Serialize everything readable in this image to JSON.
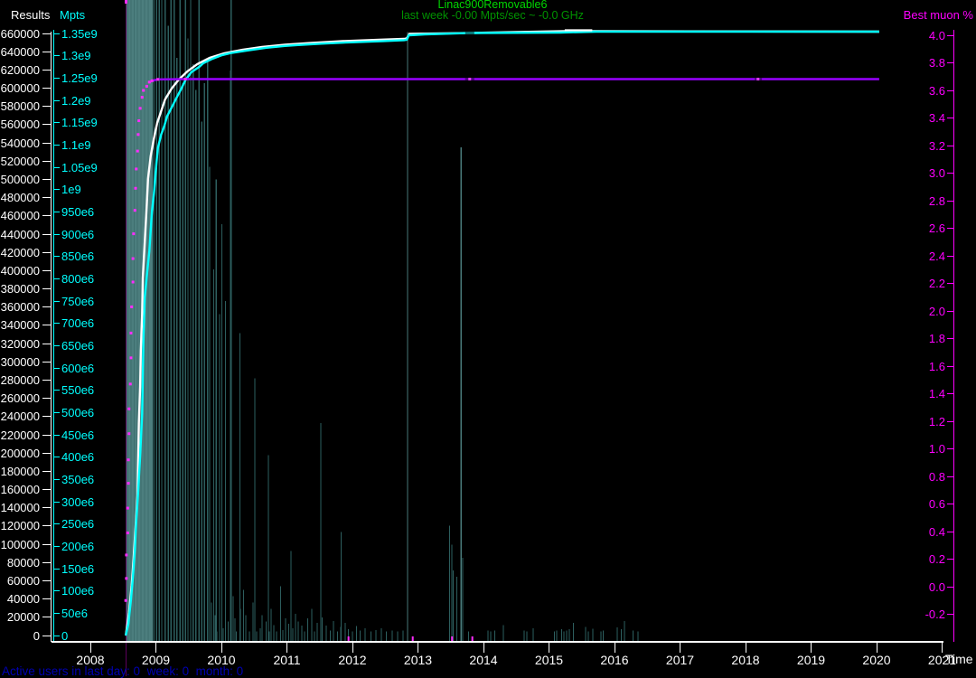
{
  "window": {
    "background": "#000000"
  },
  "header": {
    "title_color": "#00d800",
    "subtitle_color": "#009300"
  },
  "status_bar": {
    "text": "Active users in last day: 0  week: 0  month: 0",
    "color": "#0000b4"
  },
  "chart_data": {
    "type": "line",
    "title": "Linac900Removable6",
    "subtitle": "last week -0.00 Mpts/sec ~ -0.0 GHz",
    "grid": false,
    "x_axis": {
      "label": "Time",
      "color": "#ffffff",
      "range": [
        2007.42,
        2021.17
      ],
      "tick_labels": [
        "2008",
        "2009",
        "2010",
        "2011",
        "2012",
        "2013",
        "2014",
        "2015",
        "2016",
        "2017",
        "2018",
        "2019",
        "2020",
        "2021"
      ]
    },
    "y_axes": {
      "results": {
        "label": "Results",
        "color": "#ffffff",
        "range": [
          0,
          660000
        ],
        "tick_step": 20000,
        "tick_labels": [
          "660000",
          "640000",
          "620000",
          "600000",
          "580000",
          "560000",
          "540000",
          "520000",
          "500000",
          "480000",
          "460000",
          "440000",
          "420000",
          "400000",
          "380000",
          "360000",
          "340000",
          "320000",
          "300000",
          "280000",
          "260000",
          "240000",
          "220000",
          "200000",
          "180000",
          "160000",
          "140000",
          "120000",
          "100000",
          "80000",
          "60000",
          "40000",
          "20000",
          "0"
        ]
      },
      "mpts": {
        "label": "Mpts",
        "color": "#00ffff",
        "range": [
          0,
          1350000000
        ],
        "tick_step": 50000000,
        "tick_labels": [
          "1.35e9",
          "1.3e9",
          "1.25e9",
          "1.2e9",
          "1.15e9",
          "1.1e9",
          "1.05e9",
          "1e9",
          "950e6",
          "900e6",
          "850e6",
          "800e6",
          "750e6",
          "700e6",
          "650e6",
          "600e6",
          "550e6",
          "500e6",
          "450e6",
          "400e6",
          "350e6",
          "300e6",
          "250e6",
          "200e6",
          "150e6",
          "100e6",
          "50e6",
          "0"
        ]
      },
      "muon": {
        "label": "Best muon %",
        "color": "#ff00ff",
        "range": [
          -0.2,
          4.0
        ],
        "tick_step": 0.2,
        "tick_labels": [
          "4.0",
          "3.8",
          "3.6",
          "3.4",
          "3.2",
          "3.0",
          "2.8",
          "2.6",
          "2.4",
          "2.2",
          "2.0",
          "1.8",
          "1.6",
          "1.4",
          "1.2",
          "1.0",
          "0.8",
          "0.6",
          "0.4",
          "0.2",
          "0.0",
          "-0.2"
        ]
      }
    },
    "series": [
      {
        "name": "Results",
        "axis": "results",
        "color": "#ffffff",
        "points": [
          [
            2008.54,
            0
          ],
          [
            2008.59,
            24800
          ],
          [
            2008.63,
            54500
          ],
          [
            2008.66,
            84200
          ],
          [
            2008.69,
            118900
          ],
          [
            2008.72,
            153600
          ],
          [
            2008.73,
            193200
          ],
          [
            2008.74,
            232900
          ],
          [
            2008.76,
            272500
          ],
          [
            2008.77,
            312200
          ],
          [
            2008.79,
            351800
          ],
          [
            2008.8,
            391400
          ],
          [
            2008.83,
            431100
          ],
          [
            2008.86,
            470700
          ],
          [
            2008.88,
            500500
          ],
          [
            2008.92,
            525200
          ],
          [
            2008.97,
            545000
          ],
          [
            2009.02,
            561900
          ],
          [
            2009.08,
            574800
          ],
          [
            2009.14,
            587700
          ],
          [
            2009.24,
            599600
          ],
          [
            2009.35,
            609500
          ],
          [
            2009.48,
            618400
          ],
          [
            2009.63,
            626300
          ],
          [
            2009.82,
            633200
          ],
          [
            2010.04,
            638200
          ],
          [
            2010.32,
            642200
          ],
          [
            2010.62,
            645200
          ],
          [
            2010.97,
            647700
          ],
          [
            2011.38,
            649600
          ],
          [
            2011.86,
            651600
          ],
          [
            2012.41,
            653100
          ],
          [
            2012.79,
            654100
          ],
          [
            2012.83,
            654600
          ],
          [
            2012.87,
            659500
          ],
          [
            2013.79,
            660500
          ],
          [
            2015.24,
            662500
          ],
          [
            2015.66,
            662500
          ],
          [
            2020.04,
            662000
          ]
        ]
      },
      {
        "name": "Mpts",
        "axis": "mpts",
        "color": "#00ffff",
        "units": "millions",
        "points": [
          [
            2008.54,
            0
          ],
          [
            2008.58,
            26
          ],
          [
            2008.62,
            81
          ],
          [
            2008.65,
            132
          ],
          [
            2008.68,
            193
          ],
          [
            2008.7,
            255
          ],
          [
            2008.73,
            324
          ],
          [
            2008.76,
            403
          ],
          [
            2008.79,
            497
          ],
          [
            2008.8,
            576
          ],
          [
            2008.81,
            659
          ],
          [
            2008.83,
            758
          ],
          [
            2008.87,
            819
          ],
          [
            2008.9,
            862
          ],
          [
            2008.94,
            951
          ],
          [
            2008.97,
            991
          ],
          [
            2009.01,
            1062
          ],
          [
            2009.03,
            1093
          ],
          [
            2009.08,
            1123
          ],
          [
            2009.13,
            1143
          ],
          [
            2009.17,
            1164
          ],
          [
            2009.24,
            1184
          ],
          [
            2009.31,
            1204
          ],
          [
            2009.38,
            1224
          ],
          [
            2009.45,
            1245
          ],
          [
            2009.54,
            1263
          ],
          [
            2009.66,
            1275
          ],
          [
            2009.72,
            1283
          ],
          [
            2009.86,
            1293
          ],
          [
            2010.0,
            1301
          ],
          [
            2010.14,
            1306
          ],
          [
            2010.41,
            1312
          ],
          [
            2010.69,
            1318
          ],
          [
            2010.97,
            1322
          ],
          [
            2011.17,
            1324
          ],
          [
            2011.52,
            1327
          ],
          [
            2011.93,
            1330
          ],
          [
            2012.48,
            1333
          ],
          [
            2012.79,
            1335
          ],
          [
            2012.83,
            1336
          ],
          [
            2012.86,
            1346
          ],
          [
            2013.1,
            1348
          ],
          [
            2013.79,
            1351
          ],
          [
            2015.17,
            1352
          ],
          [
            2015.72,
            1354
          ],
          [
            2020.04,
            1354
          ]
        ]
      },
      {
        "name": "Best muon %",
        "axis": "muon",
        "line_color": "#9900ff",
        "dot_color": "#ff2cff",
        "dot_end_year": 2009.45,
        "points": [
          [
            2008.54,
            -0.1
          ],
          [
            2008.55,
            0.06
          ],
          [
            2008.55,
            0.23
          ],
          [
            2008.57,
            0.39
          ],
          [
            2008.57,
            0.57
          ],
          [
            2008.58,
            0.75
          ],
          [
            2008.58,
            0.92
          ],
          [
            2008.59,
            1.11
          ],
          [
            2008.59,
            1.29
          ],
          [
            2008.61,
            1.47
          ],
          [
            2008.62,
            1.66
          ],
          [
            2008.62,
            1.84
          ],
          [
            2008.63,
            2.03
          ],
          [
            2008.65,
            2.21
          ],
          [
            2008.65,
            2.38
          ],
          [
            2008.66,
            2.56
          ],
          [
            2008.68,
            2.73
          ],
          [
            2008.69,
            2.89
          ],
          [
            2008.7,
            3.03
          ],
          [
            2008.72,
            3.16
          ],
          [
            2008.73,
            3.28
          ],
          [
            2008.74,
            3.38
          ],
          [
            2008.76,
            3.47
          ],
          [
            2008.79,
            3.55
          ],
          [
            2008.81,
            3.6
          ],
          [
            2008.86,
            3.63
          ],
          [
            2008.9,
            3.66
          ],
          [
            2008.94,
            3.67
          ],
          [
            2009.03,
            3.68
          ],
          [
            2009.45,
            3.682
          ],
          [
            2020.04,
            3.682
          ]
        ]
      }
    ],
    "activity_histogram": {
      "description": "unlabeled teal activity spikes, height relative to full plot height",
      "block": {
        "year_start": 2008.54,
        "year_end": 2008.95,
        "color": "#4c7e7e"
      },
      "texture_years": [
        2008.57,
        2008.62,
        2008.67,
        2008.72,
        2008.77,
        2008.83,
        2008.88
      ],
      "texture_color": "#3e6e6e",
      "spike_color": "#2d5f5f",
      "bright_spike_color": "#487979",
      "spikes": [
        [
          2008.97,
          1
        ],
        [
          2009.01,
          1
        ],
        [
          2009.05,
          1
        ],
        [
          2009.09,
          1
        ],
        [
          2009.14,
          1
        ],
        [
          2009.19,
          0.96
        ],
        [
          2009.23,
          1
        ],
        [
          2009.28,
          1
        ],
        [
          2009.32,
          0.91
        ],
        [
          2009.37,
          1
        ],
        [
          2009.41,
          0.87
        ],
        [
          2009.45,
          1
        ],
        [
          2009.49,
          0.94
        ],
        [
          2009.53,
          1
        ],
        [
          2009.57,
          0.9
        ],
        [
          2009.61,
          0.86
        ],
        [
          2009.66,
          1
        ],
        [
          2009.7,
          0.81
        ],
        [
          2009.74,
          0.87
        ],
        [
          2009.79,
          0.91
        ],
        [
          2009.82,
          0.74
        ],
        [
          2009.85,
          0.06
        ],
        [
          2009.88,
          0.58
        ],
        [
          2009.9,
          0.04
        ],
        [
          2009.92,
          0.72
        ],
        [
          2009.93,
          0.015
        ],
        [
          2009.97,
          0.51
        ],
        [
          2010.01,
          0.65
        ],
        [
          2010.03,
          0.02
        ],
        [
          2010.06,
          0.53
        ],
        [
          2010.1,
          0.03
        ],
        [
          2010.14,
          0.89
        ],
        [
          2010.15,
          1
        ],
        [
          2010.18,
          0.07
        ],
        [
          2010.21,
          0.035
        ],
        [
          2010.23,
          0.015
        ],
        [
          2010.28,
          0.48
        ],
        [
          2010.29,
          0.05
        ],
        [
          2010.34,
          0.08
        ],
        [
          2010.37,
          0.04
        ],
        [
          2010.43,
          0.015
        ],
        [
          2010.48,
          0.06
        ],
        [
          2010.51,
          0.41
        ],
        [
          2010.54,
          0.015
        ],
        [
          2010.59,
          0.02
        ],
        [
          2010.62,
          0.04
        ],
        [
          2010.68,
          0.03
        ],
        [
          2010.72,
          0.29
        ],
        [
          2010.73,
          0.015
        ],
        [
          2010.76,
          0.05
        ],
        [
          2010.8,
          0.025
        ],
        [
          2010.84,
          0.015
        ],
        [
          2010.9,
          0.085
        ],
        [
          2010.94,
          0.017
        ],
        [
          2010.98,
          0.035
        ],
        [
          2011.03,
          0.027
        ],
        [
          2011.06,
          0.14
        ],
        [
          2011.09,
          0.02
        ],
        [
          2011.13,
          0.042
        ],
        [
          2011.17,
          0.03
        ],
        [
          2011.23,
          0.024
        ],
        [
          2011.27,
          0.015
        ],
        [
          2011.32,
          0.035
        ],
        [
          2011.38,
          0.05
        ],
        [
          2011.42,
          0.015
        ],
        [
          2011.46,
          0.028
        ],
        [
          2011.52,
          0.34
        ],
        [
          2011.54,
          0.037
        ],
        [
          2011.6,
          0.024
        ],
        [
          2011.66,
          0.016
        ],
        [
          2011.71,
          0.031
        ],
        [
          2011.77,
          0.015
        ],
        [
          2011.82,
          0.022
        ],
        [
          2011.83,
          0.17
        ],
        [
          2011.89,
          0.028
        ],
        [
          2011.94,
          0.018
        ],
        [
          2012.0,
          0.015
        ],
        [
          2012.06,
          0.023
        ],
        [
          2012.12,
          0.016
        ],
        [
          2012.19,
          0.02
        ],
        [
          2012.28,
          0.015
        ],
        [
          2012.36,
          0.017
        ],
        [
          2012.44,
          0.02
        ],
        [
          2012.52,
          0.015
        ],
        [
          2012.61,
          0.016
        ],
        [
          2012.69,
          0.015
        ],
        [
          2012.77,
          0.016
        ],
        [
          2012.84,
          0.95,
          1
        ],
        [
          2013.48,
          0.18
        ],
        [
          2013.52,
          0.15
        ],
        [
          2013.54,
          0.11
        ],
        [
          2013.59,
          0.1
        ],
        [
          2013.66,
          0.77,
          1
        ],
        [
          2013.68,
          0.13
        ],
        [
          2013.77,
          0.015
        ],
        [
          2014.07,
          0.016
        ],
        [
          2014.11,
          0.015
        ],
        [
          2014.17,
          0.016
        ],
        [
          2014.3,
          0.025
        ],
        [
          2014.62,
          0.016
        ],
        [
          2014.66,
          0.015
        ],
        [
          2014.76,
          0.02
        ],
        [
          2015.08,
          0.015
        ],
        [
          2015.12,
          0.016
        ],
        [
          2015.19,
          0.018
        ],
        [
          2015.23,
          0.015
        ],
        [
          2015.27,
          0.016
        ],
        [
          2015.31,
          0.018
        ],
        [
          2015.37,
          0.028
        ],
        [
          2015.56,
          0.022
        ],
        [
          2015.6,
          0.015
        ],
        [
          2015.67,
          0.019
        ],
        [
          2015.79,
          0.015
        ],
        [
          2015.83,
          0.016
        ],
        [
          2016.04,
          0.021
        ],
        [
          2016.1,
          0.018
        ],
        [
          2016.15,
          0.031
        ],
        [
          2016.28,
          0.016
        ],
        [
          2016.36,
          0.015
        ]
      ]
    },
    "events": {
      "start_line_year": 2008.545,
      "start_line_color": "#5c005c",
      "start_line_tip_color": "#ff2cff",
      "bottom_marks": [
        2011.94,
        2012.92,
        2013.52,
        2013.83
      ],
      "bottom_marks_color": "#ff2cff",
      "gaps": {
        "mpts": [
          [
            2013.72,
            2013.86
          ]
        ],
        "mpts_gap_color": "#006e6e",
        "muon": [
          [
            2013.72,
            2013.86
          ],
          [
            2018.14,
            2018.25
          ]
        ],
        "muon_gap_color": "#4c0080",
        "muon_gap_dots": [
          2013.79,
          2018.19
        ],
        "muon_gap_dot_color": "#e33cff"
      },
      "white_overlay_segments": [
        [
          2015.24,
          2015.66,
          662500
        ]
      ]
    }
  }
}
